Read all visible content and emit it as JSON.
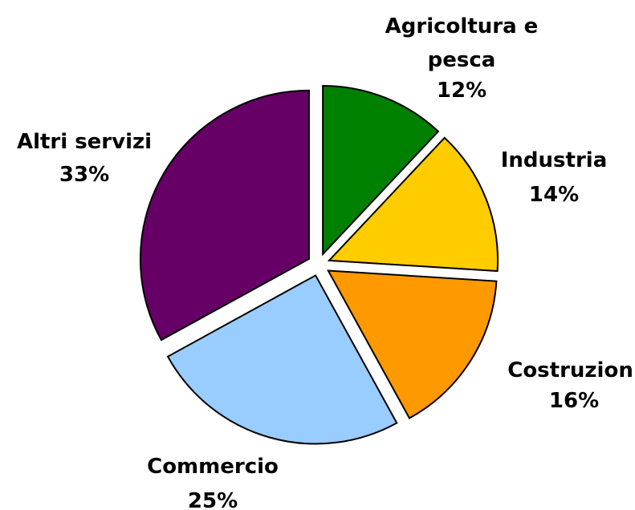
{
  "chart_data": {
    "type": "pie",
    "categories": [
      "Agricoltura e pesca",
      "Industria",
      "Costruzioni",
      "Commercio",
      "Altri servizi"
    ],
    "values": [
      12,
      14,
      16,
      25,
      33
    ],
    "value_labels": [
      "12%",
      "14%",
      "16%",
      "25%",
      "33%"
    ],
    "colors": [
      "#008000",
      "#ffcc00",
      "#ff9900",
      "#99ccff",
      "#660066"
    ]
  }
}
